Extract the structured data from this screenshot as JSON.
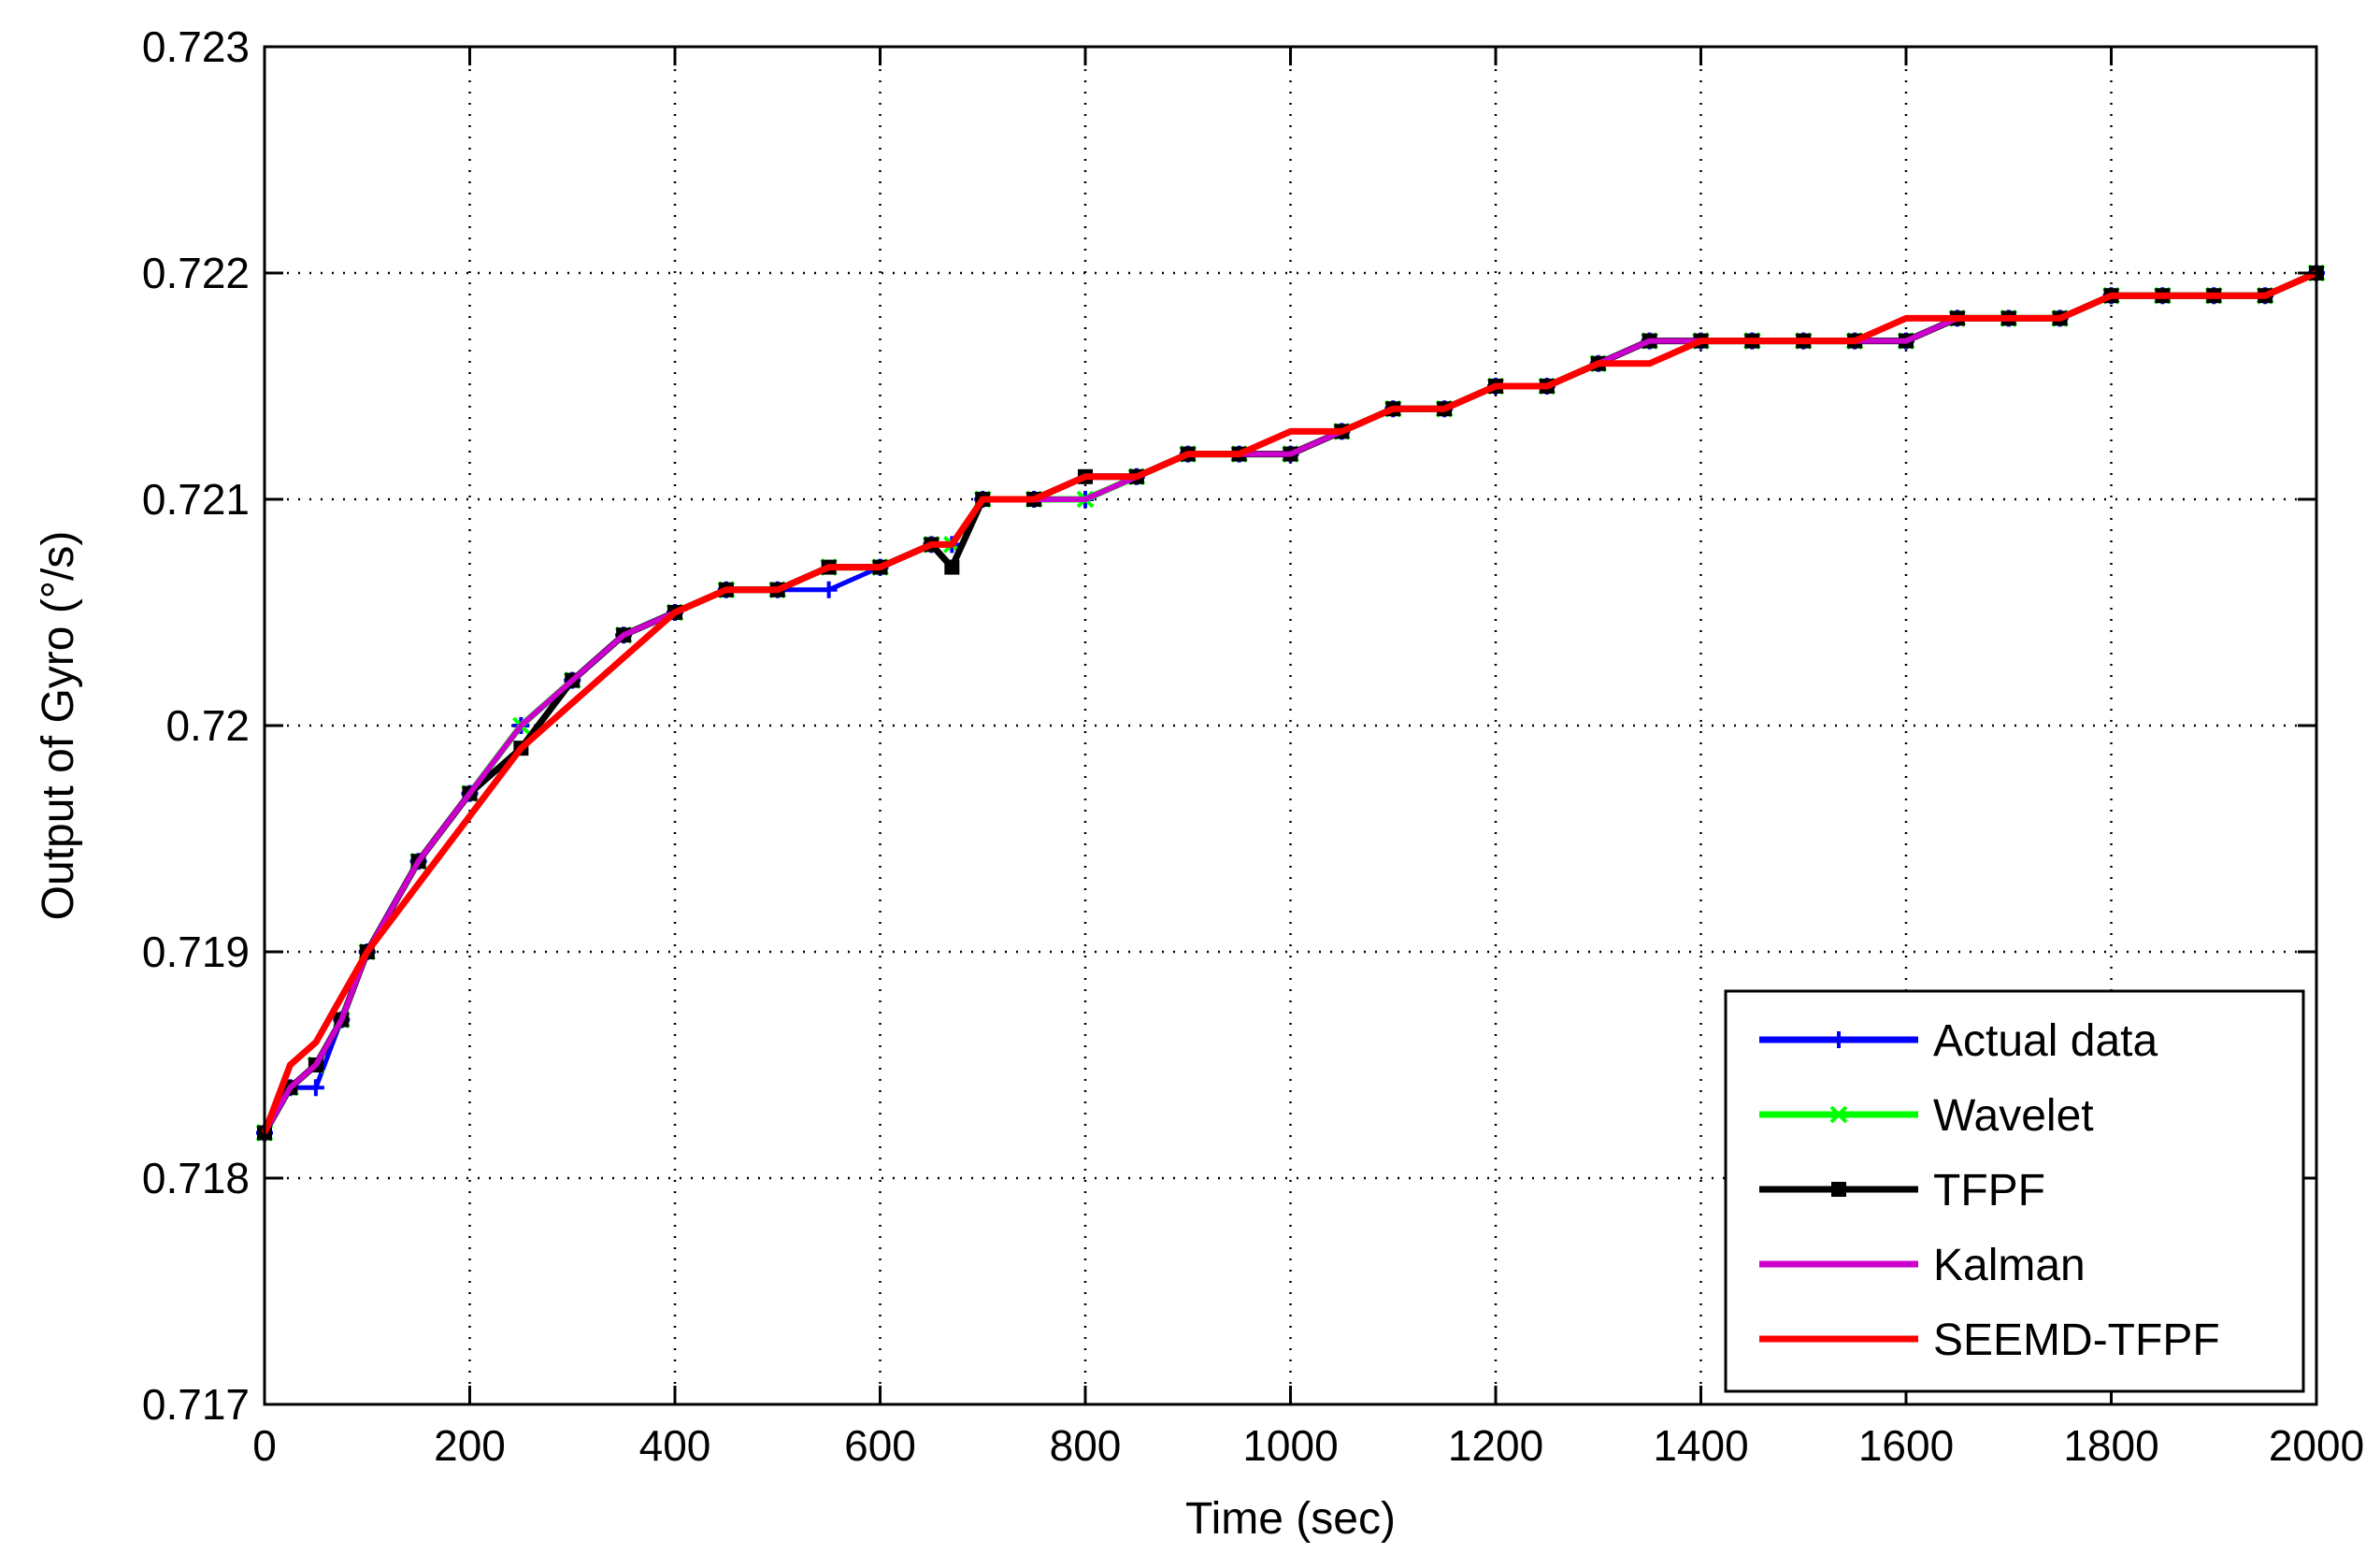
{
  "chart_data": {
    "type": "line",
    "title": "",
    "xlabel": "Time (sec)",
    "ylabel": "Output of Gyro (°/s)",
    "xlim": [
      0,
      2000
    ],
    "ylim": [
      0.717,
      0.723
    ],
    "xticks": [
      0,
      200,
      400,
      600,
      800,
      1000,
      1200,
      1400,
      1600,
      1800,
      2000
    ],
    "yticks": [
      0.717,
      0.718,
      0.719,
      0.72,
      0.721,
      0.722,
      0.723
    ],
    "xtick_labels": [
      "0",
      "200",
      "400",
      "600",
      "800",
      "1000",
      "1200",
      "1400",
      "1600",
      "1800",
      "2000"
    ],
    "ytick_labels": [
      "0.717",
      "0.718",
      "0.719",
      "0.72",
      "0.721",
      "0.722",
      "0.723"
    ],
    "grid": true,
    "legend_position": "bottom-right",
    "x": [
      0,
      25,
      50,
      75,
      100,
      150,
      200,
      250,
      300,
      350,
      400,
      450,
      500,
      550,
      600,
      650,
      670,
      700,
      750,
      800,
      850,
      900,
      950,
      1000,
      1050,
      1100,
      1150,
      1200,
      1250,
      1300,
      1350,
      1400,
      1450,
      1500,
      1550,
      1600,
      1650,
      1700,
      1750,
      1800,
      1850,
      1900,
      1950,
      2000
    ],
    "series": [
      {
        "name": "Actual data",
        "color": "#0000ff",
        "marker": "plus",
        "values": [
          0.7182,
          0.7184,
          0.7184,
          0.7187,
          0.719,
          0.7194,
          0.7197,
          0.72,
          0.7202,
          0.7204,
          0.7205,
          0.7206,
          0.7206,
          0.7206,
          0.7207,
          0.7208,
          0.7208,
          0.721,
          0.721,
          0.721,
          0.7211,
          0.7212,
          0.7212,
          0.7212,
          0.7213,
          0.7214,
          0.7214,
          0.7215,
          0.7215,
          0.7216,
          0.7217,
          0.7217,
          0.7217,
          0.7217,
          0.7217,
          0.7217,
          0.7218,
          0.7218,
          0.7218,
          0.7219,
          0.7219,
          0.7219,
          0.7219,
          0.722
        ]
      },
      {
        "name": "Wavelet",
        "color": "#00ff00",
        "marker": "x",
        "values": [
          0.7182,
          0.7184,
          0.7185,
          0.7187,
          0.719,
          0.7194,
          0.7197,
          0.72,
          0.7202,
          0.7204,
          0.7205,
          0.7206,
          0.7206,
          0.7207,
          0.7207,
          0.7208,
          0.7208,
          0.721,
          0.721,
          0.721,
          0.7211,
          0.7212,
          0.7212,
          0.7212,
          0.7213,
          0.7214,
          0.7214,
          0.7215,
          0.7215,
          0.7216,
          0.7217,
          0.7217,
          0.7217,
          0.7217,
          0.7217,
          0.7217,
          0.7218,
          0.7218,
          0.7218,
          0.7219,
          0.7219,
          0.7219,
          0.7219,
          0.722
        ]
      },
      {
        "name": "TFPF",
        "color": "#000000",
        "marker": "square",
        "values": [
          0.7182,
          0.7184,
          0.7185,
          0.7187,
          0.719,
          0.7194,
          0.7197,
          0.7199,
          0.7202,
          0.7204,
          0.7205,
          0.7206,
          0.7206,
          0.7207,
          0.7207,
          0.7208,
          0.7207,
          0.721,
          0.721,
          0.7211,
          0.7211,
          0.7212,
          0.7212,
          0.7212,
          0.7213,
          0.7214,
          0.7214,
          0.7215,
          0.7215,
          0.7216,
          0.7217,
          0.7217,
          0.7217,
          0.7217,
          0.7217,
          0.7217,
          0.7218,
          0.7218,
          0.7218,
          0.7219,
          0.7219,
          0.7219,
          0.7219,
          0.722
        ]
      },
      {
        "name": "Kalman",
        "color": "#cc00cc",
        "marker": "none",
        "values": [
          0.7182,
          0.7184,
          0.7185,
          0.7187,
          0.719,
          0.7194,
          0.7197,
          0.72,
          0.7202,
          0.7204,
          0.7205,
          0.7206,
          0.7206,
          0.7207,
          0.7207,
          0.7208,
          0.7208,
          0.721,
          0.721,
          0.721,
          0.7211,
          0.7212,
          0.7212,
          0.7212,
          0.7213,
          0.7214,
          0.7214,
          0.7215,
          0.7215,
          0.7216,
          0.7217,
          0.7217,
          0.7217,
          0.7217,
          0.7217,
          0.7217,
          0.7218,
          0.7218,
          0.7218,
          0.7219,
          0.7219,
          0.7219,
          0.7219,
          0.722
        ]
      },
      {
        "name": "SEEMD-TFPF",
        "color": "#ff0000",
        "marker": "none",
        "values": [
          0.7182,
          0.7185,
          0.7186,
          0.7188,
          0.719,
          0.7193,
          0.7196,
          0.7199,
          0.7201,
          0.7203,
          0.7205,
          0.7206,
          0.7206,
          0.7207,
          0.7207,
          0.7208,
          0.7208,
          0.721,
          0.721,
          0.7211,
          0.7211,
          0.7212,
          0.7212,
          0.7213,
          0.7213,
          0.7214,
          0.7214,
          0.7215,
          0.7215,
          0.7216,
          0.7216,
          0.7217,
          0.7217,
          0.7217,
          0.7217,
          0.7218,
          0.7218,
          0.7218,
          0.7218,
          0.7219,
          0.7219,
          0.7219,
          0.7219,
          0.722
        ]
      }
    ]
  }
}
